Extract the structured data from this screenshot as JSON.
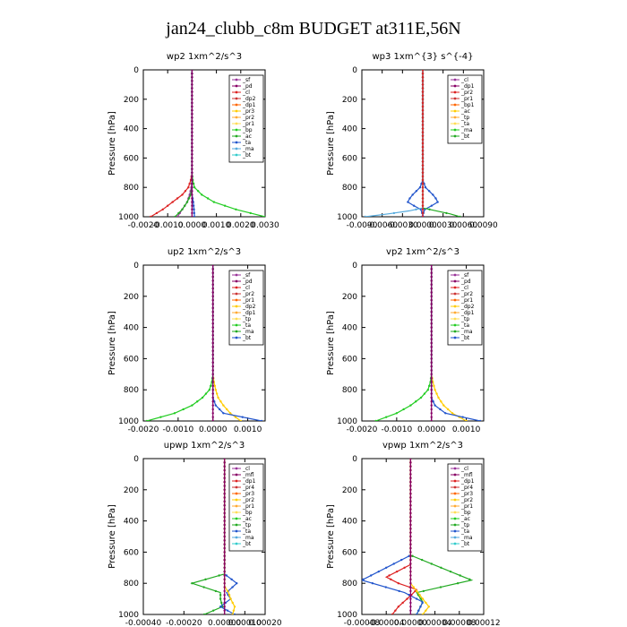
{
  "figure_title": "jan24_clubb_c8m  BUDGET at311E,56N",
  "chart_data": [
    {
      "type": "line",
      "title": "wp2",
      "units": "1xm^2/s^3",
      "ylabel": "Pressure  [hPa]",
      "ylim": [
        1000,
        0
      ],
      "yticks": [
        "0",
        "200",
        "400",
        "600",
        "800",
        "1000"
      ],
      "xlim": [
        -0.002,
        0.003
      ],
      "xticks": [
        {
          "value": -0.002,
          "label": "-0.0020"
        },
        {
          "value": -0.001,
          "label": "-0.0010"
        },
        {
          "value": 0,
          "label": "0.0000"
        },
        {
          "value": 0.001,
          "label": "0.0010"
        },
        {
          "value": 0.002,
          "label": "0.0020"
        },
        {
          "value": 0.003,
          "label": "0.0030"
        }
      ],
      "legend": [
        "_sf",
        "_pd",
        "_cl",
        "_dp2",
        "_dp1",
        "_pr3",
        "_pr2",
        "_pr1",
        "_bp",
        "_ac",
        "_ta",
        "_ma",
        "_bt"
      ],
      "series": [
        {
          "name": "_pr1",
          "color": "#22cc22",
          "y": [
            0,
            700,
            750,
            800,
            850,
            900,
            950,
            1000
          ],
          "x": [
            0,
            0,
            3e-05,
            0.0001,
            0.0004,
            0.0009,
            0.0018,
            0.003
          ]
        },
        {
          "name": "_dp1",
          "color": "#dd2222",
          "y": [
            0,
            700,
            750,
            800,
            850,
            900,
            950,
            1000
          ],
          "x": [
            0,
            0,
            -5e-05,
            -0.00015,
            -0.0004,
            -0.0008,
            -0.0012,
            -0.0017
          ]
        },
        {
          "name": "_dp2",
          "color": "#993399",
          "y": [
            0,
            750,
            800,
            850,
            900,
            950,
            1000
          ],
          "x": [
            0,
            0,
            -3e-05,
            -0.0001,
            -0.0002,
            -0.0004,
            -0.0006
          ]
        },
        {
          "name": "_bp",
          "color": "#22aa22",
          "y": [
            0,
            800,
            850,
            900,
            950,
            1000
          ],
          "x": [
            0,
            0,
            -5e-05,
            -0.0002,
            -0.0004,
            -0.0007
          ]
        },
        {
          "name": "_ta",
          "color": "#2255cc",
          "y": [
            0,
            850,
            900,
            950,
            1000
          ],
          "x": [
            0,
            0,
            5e-05,
            8e-05,
            0.0001
          ]
        },
        {
          "name": "_pd",
          "color": "#880066",
          "y": [
            0,
            1000
          ],
          "x": [
            0,
            0
          ]
        }
      ]
    },
    {
      "type": "line",
      "title": "wp3",
      "units": "1xm^{3} s^{-4}",
      "ylabel": "Pressure  [hPa]",
      "ylim": [
        1000,
        0
      ],
      "yticks": [
        "0",
        "200",
        "400",
        "600",
        "800",
        "1000"
      ],
      "xlim": [
        -0.009,
        0.009
      ],
      "xticks": [
        {
          "value": -0.009,
          "label": "-0.0090"
        },
        {
          "value": -0.006,
          "label": "-0.0060"
        },
        {
          "value": -0.003,
          "label": "-0.0030"
        },
        {
          "value": 0,
          "label": "0.0000"
        },
        {
          "value": 0.003,
          "label": "0.0030"
        },
        {
          "value": 0.006,
          "label": "0.0060"
        },
        {
          "value": 0.009,
          "label": "0.0090"
        }
      ],
      "legend": [
        "_cl",
        "_dp1",
        "_pr2",
        "_pr1",
        "_bp1",
        "_ac",
        "_tp",
        "_ta",
        "_ma",
        "_bt"
      ],
      "series": [
        {
          "name": "_tp",
          "color": "#2255cc",
          "y": [
            0,
            750,
            800,
            850,
            880,
            900,
            920,
            950,
            1000
          ],
          "x": [
            0,
            0,
            -0.0004,
            -0.0015,
            -0.002,
            -0.0022,
            -0.0015,
            -0.0003,
            0.0001
          ]
        },
        {
          "name": "_ta",
          "color": "#2255cc",
          "y": [
            0,
            750,
            800,
            850,
            880,
            900,
            920,
            950,
            1000
          ],
          "x": [
            0,
            0,
            0.0004,
            0.0015,
            0.002,
            0.0022,
            0.0015,
            0.0003,
            -0.0001
          ]
        },
        {
          "name": "_ac",
          "color": "#22aa22",
          "y": [
            0,
            940,
            960,
            980,
            1000
          ],
          "x": [
            0,
            0,
            0.002,
            0.004,
            0.0055
          ]
        },
        {
          "name": "_ma",
          "color": "#55aadd",
          "y": [
            0,
            940,
            960,
            980,
            1000
          ],
          "x": [
            0,
            0,
            -0.002,
            -0.005,
            -0.0085
          ]
        },
        {
          "name": "_cl",
          "color": "#dd2222",
          "y": [
            0,
            1000
          ],
          "x": [
            0,
            0
          ]
        }
      ]
    },
    {
      "type": "line",
      "title": "up2",
      "units": "1xm^2/s^3",
      "ylabel": "Pressure  [hPa]",
      "ylim": [
        1000,
        0
      ],
      "yticks": [
        "0",
        "200",
        "400",
        "600",
        "800",
        "1000"
      ],
      "xlim": [
        -0.002,
        0.0015
      ],
      "xticks": [
        {
          "value": -0.002,
          "label": "-0.0020"
        },
        {
          "value": -0.001,
          "label": "-0.0010"
        },
        {
          "value": 0,
          "label": "0.0000"
        },
        {
          "value": 0.001,
          "label": "0.0010"
        }
      ],
      "legend": [
        "_sf",
        "_pd",
        "_cl",
        "_pr2",
        "_pr1",
        "_dp2",
        "_dp1",
        "_tp",
        "_ta",
        "_ma",
        "_bt"
      ],
      "series": [
        {
          "name": "_dp1",
          "color": "#22cc22",
          "y": [
            0,
            700,
            750,
            800,
            850,
            900,
            950,
            1000
          ],
          "x": [
            0,
            0,
            -3e-05,
            -0.0001,
            -0.0003,
            -0.0006,
            -0.0011,
            -0.0019
          ]
        },
        {
          "name": "_pr1",
          "color": "#ffcc00",
          "y": [
            0,
            700,
            750,
            800,
            850,
            900,
            950,
            1000
          ],
          "x": [
            0,
            0,
            3e-05,
            8e-05,
            0.00015,
            0.0003,
            0.0005,
            0.0008
          ]
        },
        {
          "name": "_ta",
          "color": "#2255cc",
          "y": [
            0,
            850,
            900,
            950,
            1000
          ],
          "x": [
            0,
            0,
            8e-05,
            0.0003,
            0.0014
          ]
        },
        {
          "name": "_pd",
          "color": "#880066",
          "y": [
            0,
            1000
          ],
          "x": [
            0,
            0
          ]
        }
      ]
    },
    {
      "type": "line",
      "title": "vp2",
      "units": "1xm^2/s^3",
      "ylabel": "Pressure  [hPa]",
      "ylim": [
        1000,
        0
      ],
      "yticks": [
        "0",
        "200",
        "400",
        "600",
        "800",
        "1000"
      ],
      "xlim": [
        -0.002,
        0.0015
      ],
      "xticks": [
        {
          "value": -0.002,
          "label": "-0.0020"
        },
        {
          "value": -0.001,
          "label": "-0.0010"
        },
        {
          "value": 0,
          "label": "0.0000"
        },
        {
          "value": 0.001,
          "label": "0.0010"
        }
      ],
      "legend": [
        "_sf",
        "_pd",
        "_cl",
        "_pr2",
        "_pr1",
        "_dp2",
        "_dp1",
        "_tp",
        "_ta",
        "_ma",
        "_bt"
      ],
      "series": [
        {
          "name": "_dp1",
          "color": "#22cc22",
          "y": [
            0,
            700,
            750,
            800,
            850,
            900,
            950,
            1000
          ],
          "x": [
            0,
            0,
            -3e-05,
            -0.0001,
            -0.0003,
            -0.0006,
            -0.001,
            -0.0016
          ]
        },
        {
          "name": "_pr1",
          "color": "#ffcc00",
          "y": [
            0,
            700,
            750,
            800,
            850,
            900,
            950,
            1000
          ],
          "x": [
            0,
            0,
            4e-05,
            0.0001,
            0.0002,
            0.00035,
            0.0006,
            0.001
          ]
        },
        {
          "name": "_ta",
          "color": "#2255cc",
          "y": [
            0,
            850,
            900,
            950,
            1000
          ],
          "x": [
            0,
            0,
            0.0001,
            0.0004,
            0.0014
          ]
        },
        {
          "name": "_pd",
          "color": "#880066",
          "y": [
            0,
            1000
          ],
          "x": [
            0,
            0
          ]
        }
      ]
    },
    {
      "type": "line",
      "title": "upwp",
      "units": "1xm^2/s^3",
      "ylabel": "Pressure  [hPa]",
      "ylim": [
        1000,
        0
      ],
      "yticks": [
        "0",
        "200",
        "400",
        "600",
        "800",
        "1000"
      ],
      "xlim": [
        -0.0004,
        0.0002
      ],
      "xticks": [
        {
          "value": -0.0004,
          "label": "-0.00040"
        },
        {
          "value": -0.0002,
          "label": "-0.00020"
        },
        {
          "value": 0,
          "label": "0.00000"
        },
        {
          "value": 0.0001,
          "label": "0.00010"
        },
        {
          "value": 0.0002,
          "label": "0.00020"
        }
      ],
      "legend": [
        "_cl",
        "_mfl",
        "_dp1",
        "_pr4",
        "_pr3",
        "_pr2",
        "_pr1",
        "_bp",
        "_ac",
        "_tp",
        "_ta",
        "_ma",
        "_bt"
      ],
      "series": [
        {
          "name": "_bp",
          "color": "#22aa22",
          "y": [
            0,
            740,
            800,
            860,
            900,
            950,
            1000
          ],
          "x": [
            0,
            0,
            -0.00016,
            -2e-05,
            -2e-05,
            -1e-05,
            -0.0001
          ]
        },
        {
          "name": "_ta",
          "color": "#2255cc",
          "y": [
            0,
            740,
            800,
            860,
            900,
            950,
            1000
          ],
          "x": [
            0,
            0,
            6e-05,
            1e-05,
            3e-05,
            -2e-05,
            5e-05
          ]
        },
        {
          "name": "_pr1",
          "color": "#ffcc00",
          "y": [
            0,
            820,
            860,
            900,
            950,
            1000
          ],
          "x": [
            0,
            0,
            2e-05,
            3e-05,
            5e-05,
            4e-05
          ]
        },
        {
          "name": "_mfl",
          "color": "#880066",
          "y": [
            0,
            1000
          ],
          "x": [
            0,
            0
          ]
        }
      ]
    },
    {
      "type": "line",
      "title": "vpwp",
      "units": "1xm^2/s^3",
      "ylabel": "Pressure  [hPa]",
      "ylim": [
        1000,
        0
      ],
      "yticks": [
        "0",
        "200",
        "400",
        "600",
        "800",
        "1000"
      ],
      "xlim": [
        -8e-05,
        0.00012
      ],
      "xticks": [
        {
          "value": -8e-05,
          "label": "-0.00008"
        },
        {
          "value": -4e-05,
          "label": "-0.00004"
        },
        {
          "value": 0,
          "label": "0.00000"
        },
        {
          "value": 4e-05,
          "label": "0.00004"
        },
        {
          "value": 8e-05,
          "label": "0.00008"
        },
        {
          "value": 0.00012,
          "label": "0.00012"
        }
      ],
      "legend": [
        "_cl",
        "_mfl",
        "_dp1",
        "_pr4",
        "_pr3",
        "_pr2",
        "_pr1",
        "_bp",
        "_ac",
        "_tp",
        "_ta",
        "_ma",
        "_bt"
      ],
      "series": [
        {
          "name": "_bp",
          "color": "#22aa22",
          "y": [
            0,
            620,
            700,
            780,
            860,
            920,
            1000
          ],
          "x": [
            0,
            0,
            5e-05,
            0.0001,
            1e-05,
            2e-05,
            1e-05
          ]
        },
        {
          "name": "_tp",
          "color": "#2255cc",
          "y": [
            0,
            620,
            700,
            780,
            860,
            920,
            1000
          ],
          "x": [
            0,
            0,
            -4e-05,
            -8e-05,
            -1e-05,
            2e-05,
            1e-05
          ]
        },
        {
          "name": "_dp1",
          "color": "#dd2222",
          "y": [
            0,
            680,
            720,
            760,
            800,
            840,
            880,
            950,
            1000
          ],
          "x": [
            0,
            0,
            -2e-05,
            -4e-05,
            -2e-05,
            1e-05,
            0.0,
            -2e-05,
            -3e-05
          ]
        },
        {
          "name": "_pr1",
          "color": "#ffcc00",
          "y": [
            0,
            800,
            850,
            900,
            950,
            1000
          ],
          "x": [
            0,
            0,
            1e-05,
            2e-05,
            3e-05,
            2e-05
          ]
        },
        {
          "name": "_mfl",
          "color": "#880066",
          "y": [
            0,
            1000
          ],
          "x": [
            0,
            0
          ]
        }
      ]
    }
  ],
  "legend_marker_colors": [
    "#993399",
    "#880066",
    "#dd2222",
    "#cc3333",
    "#ff6600",
    "#ffcc00",
    "#ffaa33",
    "#ffdd55",
    "#22cc22",
    "#22aa22",
    "#2255cc",
    "#55aadd",
    "#33cccc"
  ]
}
